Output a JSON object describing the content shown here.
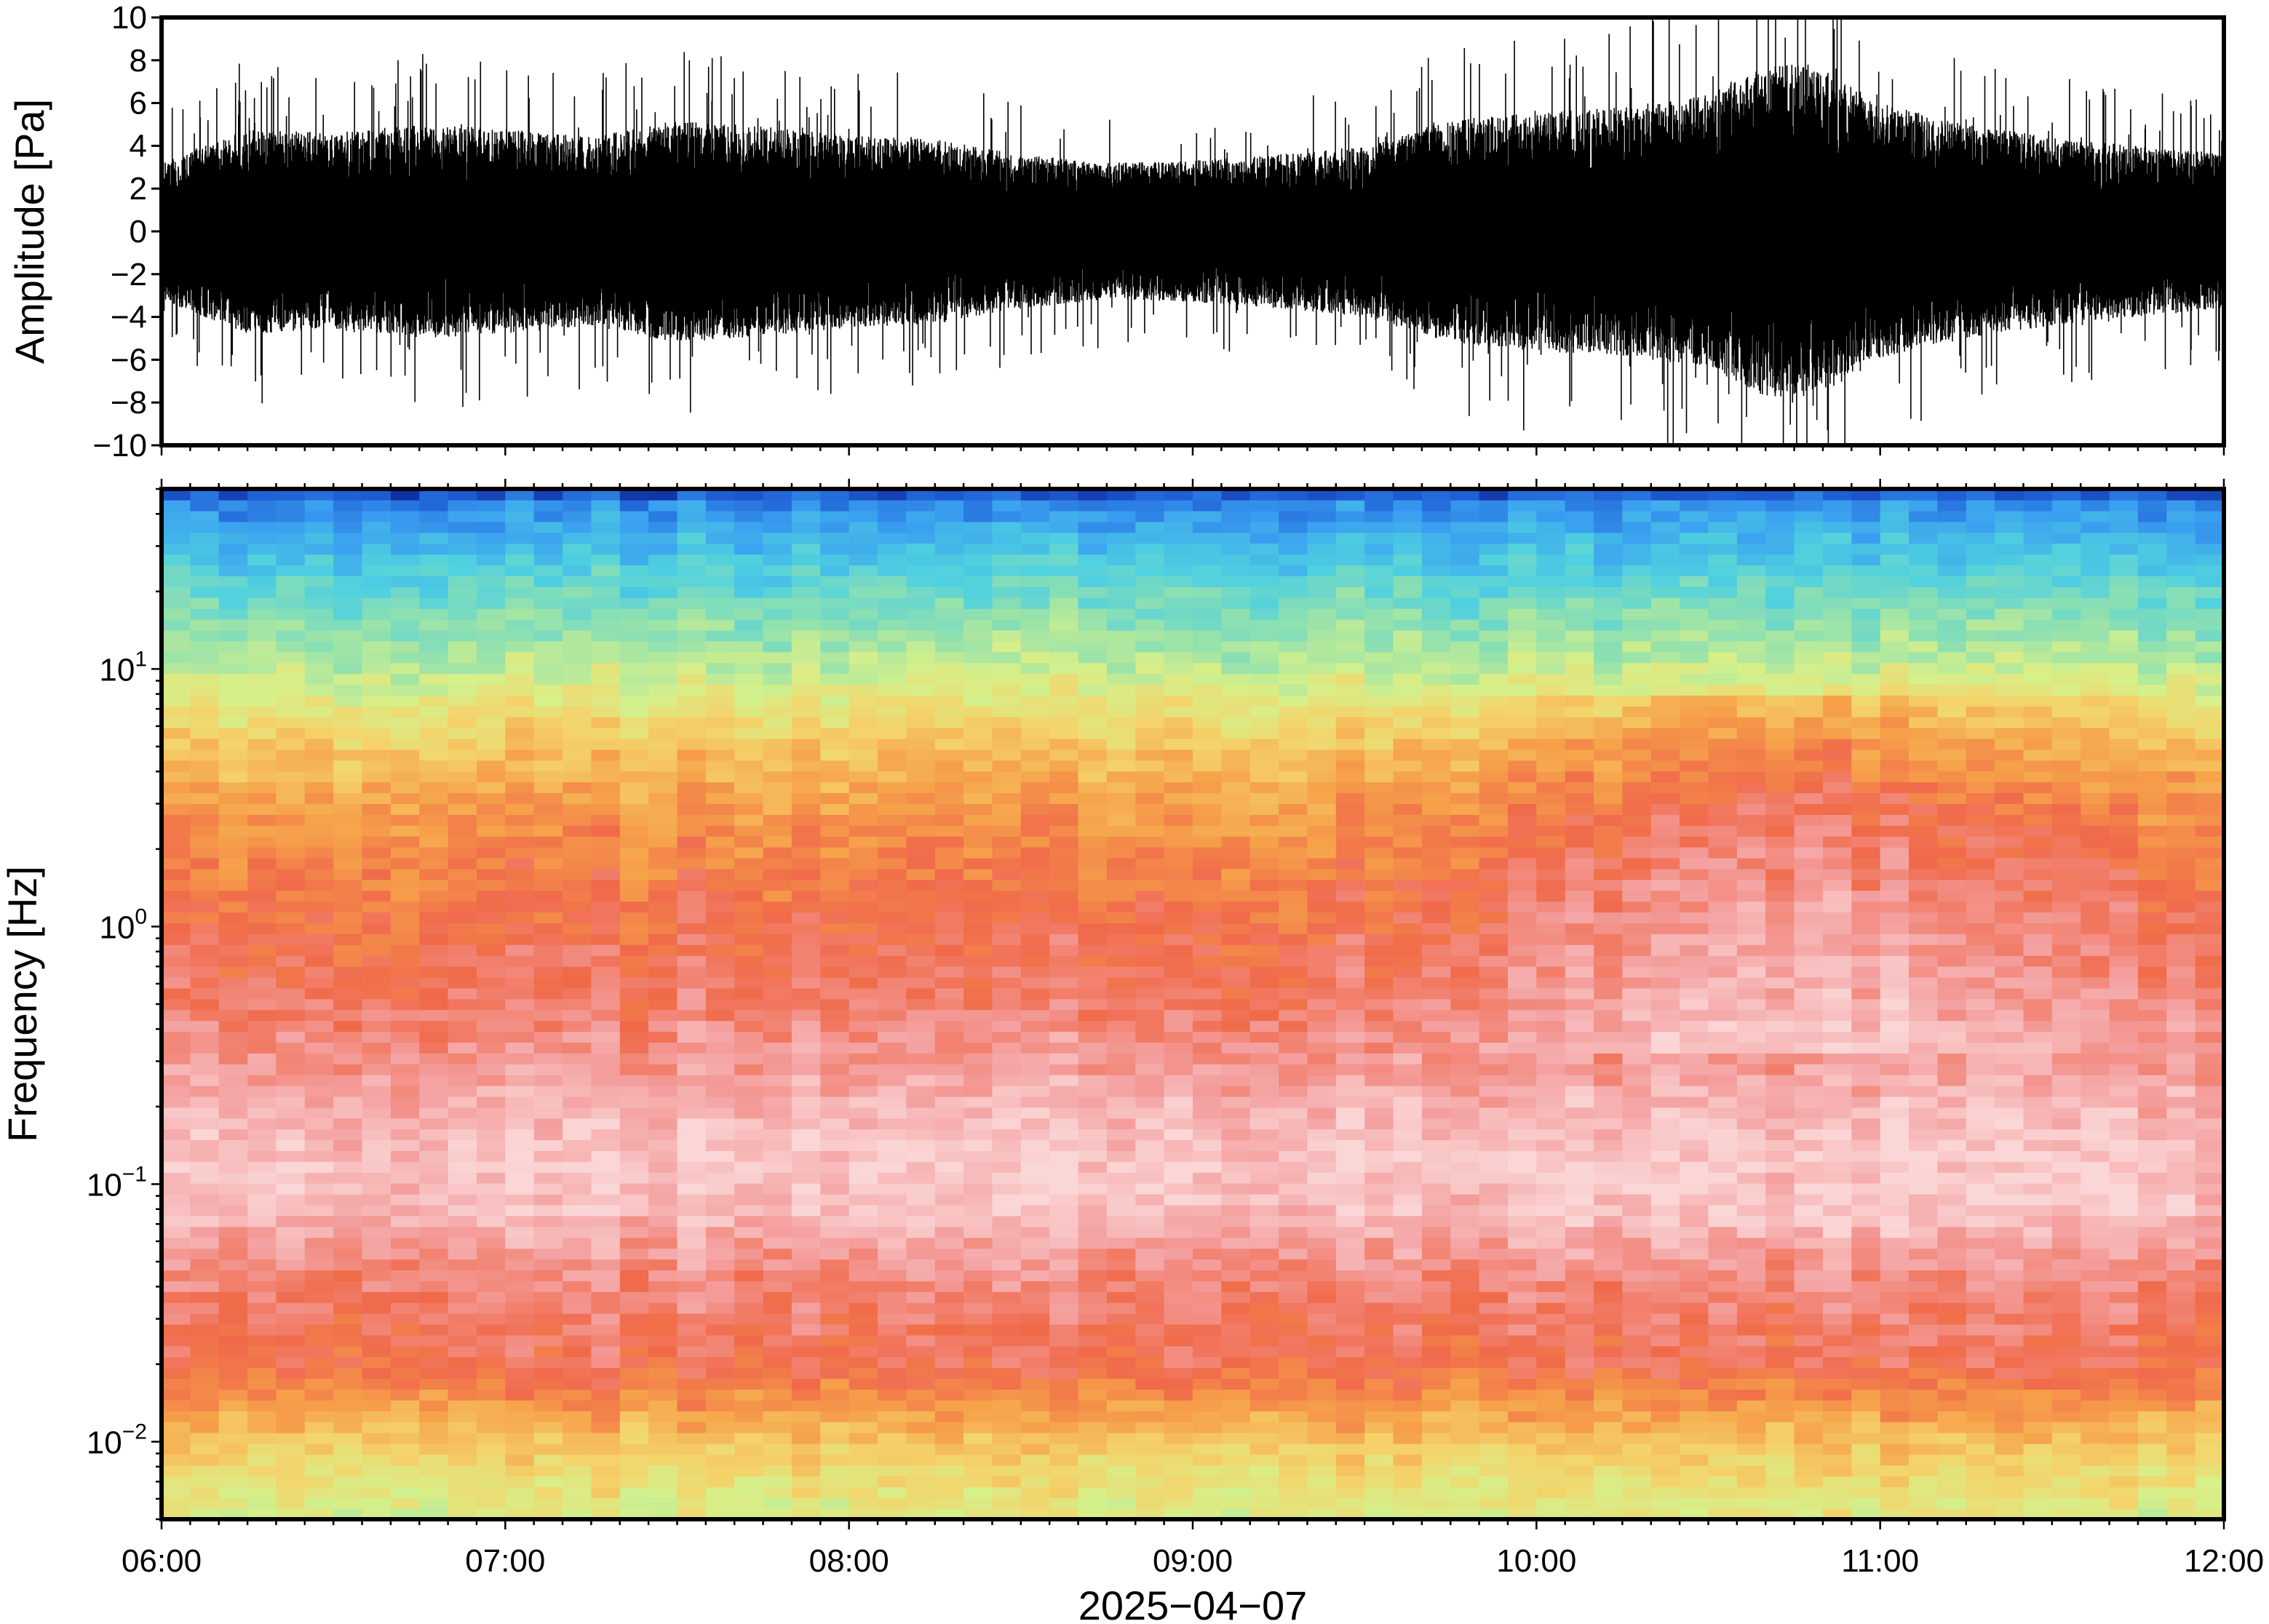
{
  "chart_data": [
    {
      "type": "line",
      "panel": "waveform",
      "title": "",
      "ylabel": "Amplitude [Pa]",
      "ylim": [
        -10,
        10
      ],
      "yticks": [
        -10,
        -8,
        -6,
        -4,
        -2,
        0,
        2,
        4,
        6,
        8,
        10
      ],
      "ytick_labels": [
        "−10",
        "−8",
        "−6",
        "−4",
        "−2",
        "0",
        "2",
        "4",
        "6",
        "8",
        "10"
      ],
      "x_range_hours": [
        6,
        12
      ],
      "envelope": {
        "hours": [
          6.0,
          6.25,
          6.5,
          6.75,
          7.0,
          7.25,
          7.5,
          7.75,
          8.0,
          8.25,
          8.5,
          8.75,
          9.0,
          9.25,
          9.5,
          9.75,
          10.0,
          10.25,
          10.5,
          10.65,
          10.75,
          10.85,
          11.0,
          11.25,
          11.5,
          11.75,
          12.0
        ],
        "typical_peak": [
          3.2,
          4.8,
          4.6,
          5.0,
          4.8,
          4.4,
          5.2,
          4.9,
          4.5,
          4.3,
          3.6,
          3.2,
          3.3,
          3.6,
          4.0,
          5.2,
          5.6,
          5.8,
          6.4,
          7.6,
          8.0,
          7.4,
          6.0,
          5.0,
          4.4,
          4.0,
          3.6
        ]
      },
      "color": "#000000"
    },
    {
      "type": "heatmap",
      "panel": "spectrogram",
      "title": "",
      "ylabel": "Frequency [Hz]",
      "yscale": "log",
      "ylim": [
        0.005,
        50
      ],
      "yticks": [
        0.01,
        0.1,
        1,
        10
      ],
      "ytick_labels": [
        {
          "base": "10",
          "exp": "−2"
        },
        {
          "base": "10",
          "exp": "−1"
        },
        {
          "base": "10",
          "exp": "0"
        },
        {
          "base": "10",
          "exp": "1"
        }
      ],
      "xlabel": "2025−04−07",
      "x_range_hours": [
        6,
        12
      ],
      "xticks_hours": [
        6,
        7,
        8,
        9,
        10,
        11,
        12
      ],
      "xtick_labels": [
        "06:00",
        "07:00",
        "08:00",
        "09:00",
        "10:00",
        "11:00",
        "12:00"
      ],
      "colormap": [
        "#0a1a8c",
        "#1f5fd6",
        "#3aa0f0",
        "#4fd0e0",
        "#8ee0b0",
        "#d6f08a",
        "#f4d36a",
        "#f6a24a",
        "#f06a4a",
        "#f4a0a0",
        "#fbd6d6"
      ],
      "power_profile": {
        "freq_hz": [
          0.005,
          0.008,
          0.012,
          0.02,
          0.03,
          0.05,
          0.08,
          0.12,
          0.2,
          0.3,
          0.5,
          0.8,
          1.2,
          2.0,
          3.0,
          5.0,
          8.0,
          12.0,
          20.0,
          30.0,
          45.0,
          50.0
        ],
        "color_level": [
          5.2,
          5.8,
          6.8,
          8.1,
          8.3,
          8.8,
          9.6,
          9.7,
          9.4,
          8.9,
          8.4,
          8.1,
          7.9,
          7.5,
          7.1,
          6.3,
          5.3,
          4.4,
          3.5,
          2.6,
          1.6,
          0.4
        ]
      }
    }
  ]
}
